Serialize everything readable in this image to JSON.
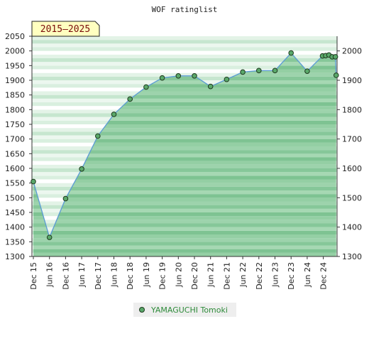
{
  "chart_data": {
    "type": "area",
    "title": "WOF ratinglist",
    "period_label": "2015–2025",
    "ylim": [
      1300,
      2050
    ],
    "y_ticks_left": [
      1300,
      1350,
      1400,
      1450,
      1500,
      1550,
      1600,
      1650,
      1700,
      1750,
      1800,
      1850,
      1900,
      1950,
      2000,
      2050
    ],
    "y_ticks_right": [
      1300,
      1400,
      1500,
      1600,
      1700,
      1800,
      1900,
      2000
    ],
    "x_tick_labels": [
      "Dec 15",
      "Jun 16",
      "Dec 16",
      "Jun 17",
      "Dec 17",
      "Jun 18",
      "Dec 18",
      "Jun 19",
      "Dec 19",
      "Jun 20",
      "Dec 20",
      "Jun 21",
      "Dec 21",
      "Jun 22",
      "Dec 22",
      "Jun 23",
      "Dec 23",
      "Jun 24",
      "Dec 24"
    ],
    "x_range": [
      0,
      18.8
    ],
    "series": [
      {
        "name": "YAMAGUCHI Tomoki",
        "color": "#2e8b3a",
        "points": [
          {
            "x": 0,
            "y": 1555
          },
          {
            "x": 1,
            "y": 1365
          },
          {
            "x": 2,
            "y": 1497
          },
          {
            "x": 3,
            "y": 1598
          },
          {
            "x": 4,
            "y": 1710
          },
          {
            "x": 5,
            "y": 1784
          },
          {
            "x": 6,
            "y": 1836
          },
          {
            "x": 7,
            "y": 1877
          },
          {
            "x": 8,
            "y": 1908
          },
          {
            "x": 9,
            "y": 1915
          },
          {
            "x": 10,
            "y": 1915
          },
          {
            "x": 11,
            "y": 1879
          },
          {
            "x": 12,
            "y": 1903
          },
          {
            "x": 13,
            "y": 1928
          },
          {
            "x": 14,
            "y": 1933
          },
          {
            "x": 15,
            "y": 1933
          },
          {
            "x": 16,
            "y": 1993
          },
          {
            "x": 17,
            "y": 1931
          },
          {
            "x": 17.95,
            "y": 1983
          },
          {
            "x": 18.15,
            "y": 1984
          },
          {
            "x": 18.35,
            "y": 1986
          },
          {
            "x": 18.55,
            "y": 1980
          },
          {
            "x": 18.75,
            "y": 1980
          },
          {
            "x": 18.8,
            "y": 1917
          }
        ]
      }
    ]
  }
}
